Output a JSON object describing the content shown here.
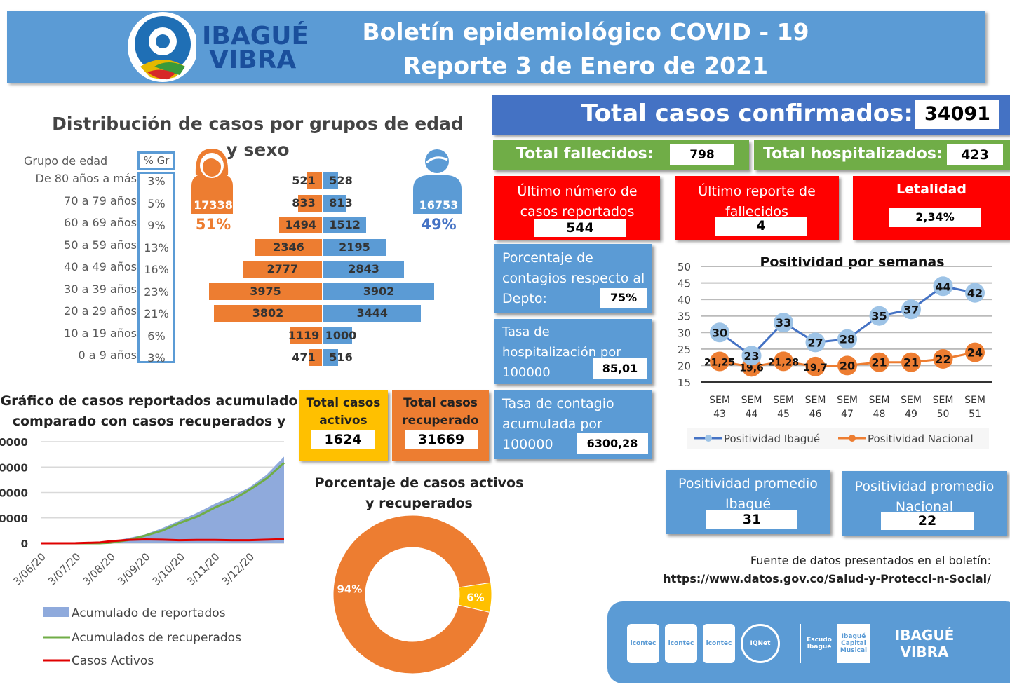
{
  "header": {
    "logo_text_1": "IBAGUÉ",
    "logo_text_2": "VIBRA",
    "title_1": "Boletín epidemiológico COVID - 19",
    "title_2": "Reporte 3 de Enero de 2021"
  },
  "age_section": {
    "title_1": "Distribución de casos por grupos de edad",
    "title_2": "y sexo",
    "col_group": "Grupo de edad",
    "col_pct": "% Gr",
    "groups": [
      "De 80 años a más",
      "70 a 79 años",
      "60 a 69 años",
      "50 a 59 años",
      "40 a 49 años",
      "30 a 39 años",
      "20 a 29 años",
      "10 a 19 años",
      "0 a 9 años"
    ],
    "pcts": [
      "3%",
      "5%",
      "9%",
      "13%",
      "16%",
      "23%",
      "21%",
      "6%",
      "3%"
    ],
    "female_total": "17338",
    "female_pct": "51%",
    "male_total": "16753",
    "male_pct": "49%"
  },
  "kpis": {
    "total_label": "Total casos confirmados:",
    "total_value": "34091",
    "deaths_label": "Total fallecidos:",
    "deaths_value": "798",
    "hosp_label": "Total hospitalizados:",
    "hosp_value": "423",
    "last_cases_label": "Último número de casos reportados",
    "last_cases_value": "544",
    "last_deaths_label": "Último reporte de fallecidos",
    "last_deaths_value": "4",
    "lethality_label": "Letalidad",
    "lethality_value": "2,34%",
    "pct_dept_label": "Porcentaje de contagios respecto al Depto:",
    "pct_dept_value": "75%",
    "hosp_rate_label": "Tasa de hospitalización por 100000",
    "hosp_rate_value": "85,01",
    "contagion_rate_label": "Tasa de contagio acumulada por 100000",
    "contagion_rate_value": "6300,28",
    "active_label": "Total casos activos",
    "active_value": "1624",
    "recovered_label": "Total casos recuperado",
    "recovered_value": "31669",
    "avg_ibague_label": "Positividad promedio Ibagué",
    "avg_ibague_value": "31",
    "avg_nacional_label": "Positividad promedio Nacional",
    "avg_nacional_value": "22"
  },
  "source": {
    "label": "Fuente de datos presentados en el boletín:",
    "url": "https://www.datos.gov.co/Salud-y-Protecci-n-Social/"
  },
  "footer_logos": [
    "icontec",
    "icontec",
    "icontec",
    "IQNet",
    "Escudo Ibagué",
    "Ibagué Capital Musical",
    "IBAGUÉ VIBRA"
  ],
  "colors": {
    "blue": "#5b9bd5",
    "dark_blue": "#4472c4",
    "orange": "#ed7d31",
    "yellow": "#ffc000",
    "green": "#70ad47",
    "red": "#ff0000"
  },
  "chart_data": [
    {
      "type": "bar",
      "title": "Distribución de casos por grupos de edad y sexo",
      "categories": [
        "De 80 años a más",
        "70 a 79 años",
        "60 a 69 años",
        "50 a 59 años",
        "40 a 49 años",
        "30 a 39 años",
        "20 a 29 años",
        "10 a 19 años",
        "0 a 9 años"
      ],
      "series": [
        {
          "name": "Mujeres",
          "values": [
            521,
            833,
            1494,
            2346,
            2777,
            3975,
            3802,
            1119,
            471
          ]
        },
        {
          "name": "Hombres",
          "values": [
            528,
            813,
            1512,
            2195,
            2843,
            3902,
            3444,
            1000,
            516
          ]
        }
      ]
    },
    {
      "type": "line",
      "title": "Positividad por semanas",
      "categories": [
        "SEM 43",
        "SEM 44",
        "SEM 45",
        "SEM 46",
        "SEM 47",
        "SEM 48",
        "SEM 49",
        "SEM 50",
        "SEM 51"
      ],
      "ylim": [
        15,
        50
      ],
      "yticks": [
        50,
        45,
        40,
        35,
        30,
        25,
        20,
        15
      ],
      "legend": "bottom",
      "series": [
        {
          "name": "Positividad Ibagué",
          "values": [
            30,
            23,
            33,
            27,
            28,
            35,
            37,
            44,
            42
          ],
          "labels": [
            "30",
            "23",
            "33",
            "27",
            "28",
            "35",
            "37",
            "44",
            "42"
          ]
        },
        {
          "name": "Positividad Nacional",
          "values": [
            21.25,
            19.6,
            21.28,
            19.7,
            20,
            21,
            21,
            22,
            24
          ],
          "labels": [
            "21,25",
            "19,6",
            "21,28",
            "19,7",
            "20",
            "21",
            "21",
            "22",
            "24"
          ]
        }
      ]
    },
    {
      "type": "area",
      "title_1": "Gráfico de casos reportados acumulado",
      "title_2": "comparado con casos recuperados y",
      "ylim": [
        0,
        40000
      ],
      "yticks": [
        "0000",
        "0000",
        "0000",
        "0000",
        "0"
      ],
      "xticks": [
        "3/06/20",
        "3/07/20",
        "3/08/20",
        "3/09/20",
        "3/10/20",
        "3/11/20",
        "3/12/20"
      ],
      "x_months": [
        0,
        1,
        1.7,
        2,
        2.5,
        3,
        3.5,
        4,
        4.5,
        5,
        5.5,
        6,
        6.5,
        7
      ],
      "series": [
        {
          "name": "Acumulado de reportados",
          "values": [
            0,
            40,
            300,
            700,
            2000,
            3500,
            6000,
            9000,
            12000,
            15500,
            18500,
            22000,
            27000,
            34091
          ]
        },
        {
          "name": "Acumulados de recuperados",
          "values": [
            0,
            0,
            0,
            200,
            1200,
            3000,
            5000,
            8000,
            10500,
            14000,
            17000,
            21000,
            25500,
            31669
          ]
        },
        {
          "name": "Casos Activos",
          "values": [
            0,
            40,
            300,
            800,
            1300,
            1500,
            1400,
            1200,
            1300,
            1300,
            1200,
            1200,
            1400,
            1624
          ]
        }
      ]
    },
    {
      "type": "pie",
      "title_1": "Porcentaje de casos activos",
      "title_2": "y recuperados",
      "donut": true,
      "slices": [
        {
          "name": "Recuperados",
          "value": 94,
          "label": "94%"
        },
        {
          "name": "Activos",
          "value": 6,
          "label": "6%"
        }
      ]
    }
  ]
}
